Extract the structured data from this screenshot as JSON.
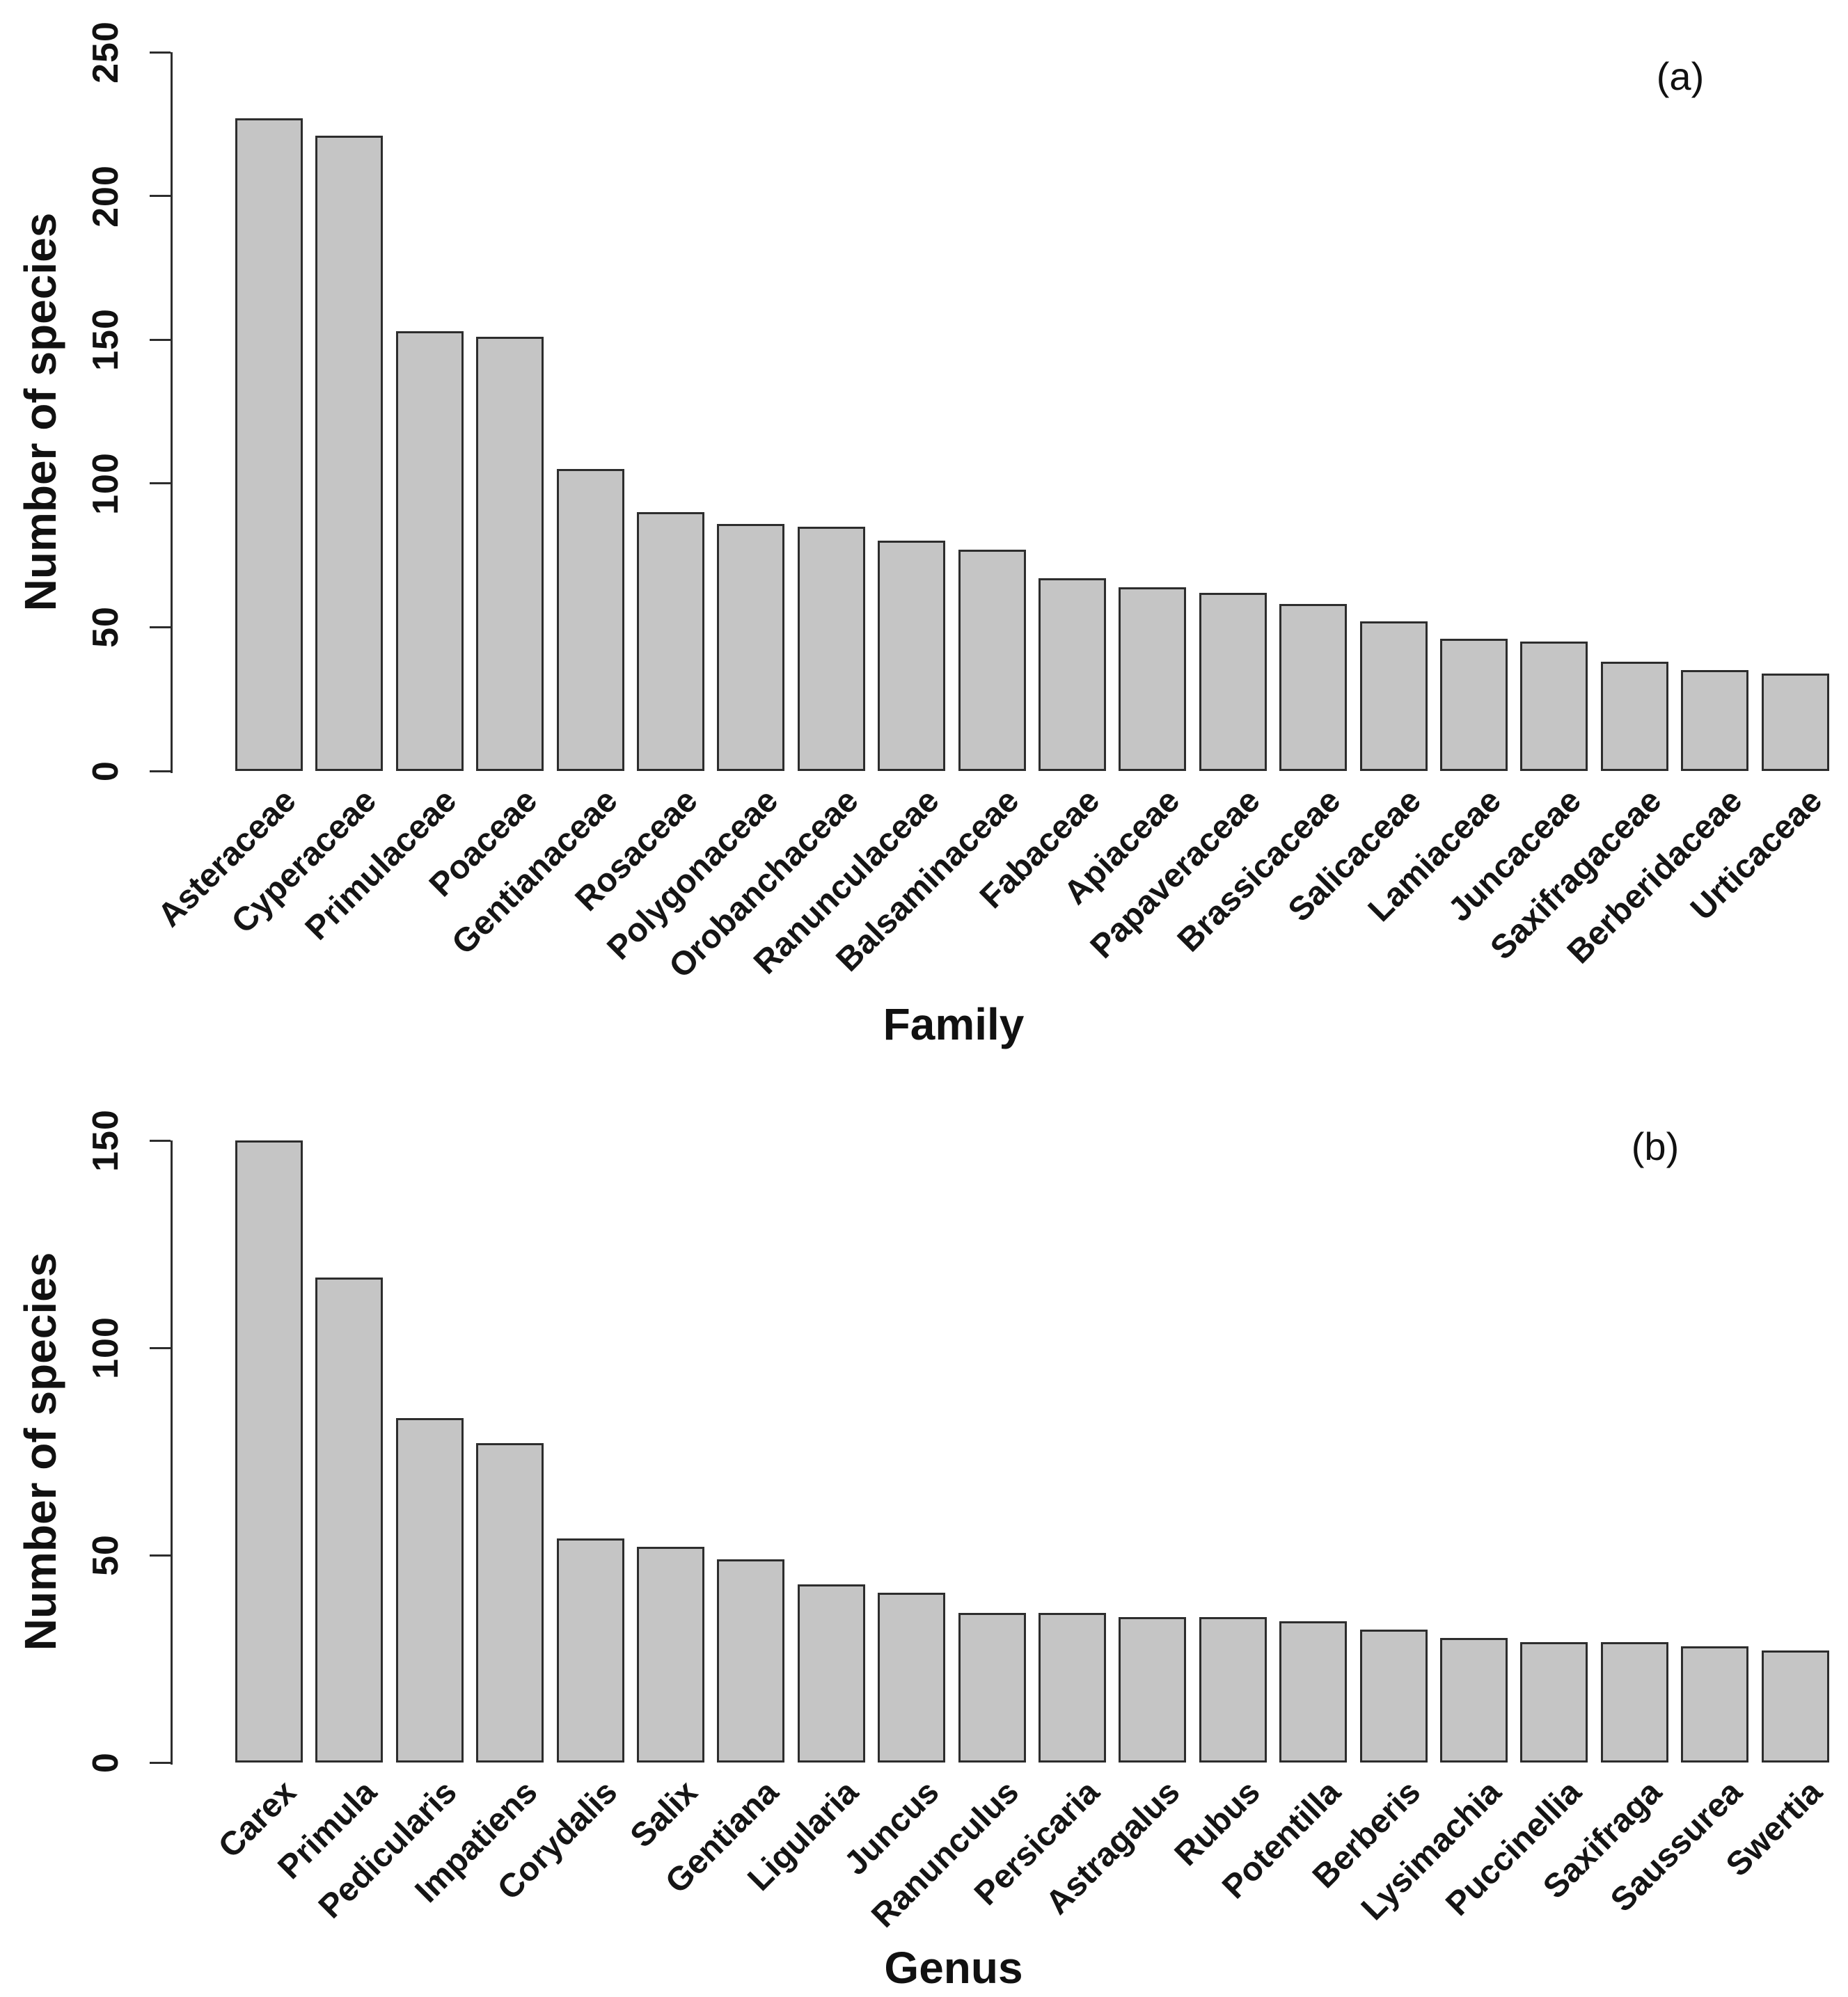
{
  "chart_data": [
    {
      "type": "bar",
      "panel_label": "(a)",
      "xlabel": "Family",
      "ylabel": "Number of species",
      "ylim": [
        0,
        250
      ],
      "yticks": [
        0,
        50,
        100,
        150,
        200,
        250
      ],
      "grid": false,
      "legend": "none",
      "bar_fill": "#c5c5c5",
      "bar_border": "#2d2d2d",
      "categories": [
        "Asteraceae",
        "Cyperaceae",
        "Primulaceae",
        "Poaceae",
        "Gentianaceae",
        "Rosaceae",
        "Polygonaceae",
        "Orobanchaceae",
        "Ranunculaceae",
        "Balsaminaceae",
        "Fabaceae",
        "Apiaceae",
        "Papaveraceae",
        "Brassicaceae",
        "Salicaceae",
        "Lamiaceae",
        "Juncaceae",
        "Saxifragaceae",
        "Berberidaceae",
        "Urticaceae"
      ],
      "values": [
        227,
        221,
        153,
        151,
        105,
        90,
        86,
        85,
        80,
        77,
        67,
        64,
        62,
        58,
        52,
        46,
        45,
        38,
        35,
        34
      ]
    },
    {
      "type": "bar",
      "panel_label": "(b)",
      "xlabel": "Genus",
      "ylabel": "Number of species",
      "ylim": [
        0,
        150
      ],
      "yticks": [
        0,
        50,
        100,
        150
      ],
      "grid": false,
      "legend": "none",
      "bar_fill": "#c5c5c5",
      "bar_border": "#2d2d2d",
      "categories": [
        "Carex",
        "Primula",
        "Pedicularis",
        "Impatiens",
        "Corydalis",
        "Salix",
        "Gentiana",
        "Ligularia",
        "Juncus",
        "Ranunculus",
        "Persicaria",
        "Astragalus",
        "Rubus",
        "Potentilla",
        "Berberis",
        "Lysimachia",
        "Puccinellia",
        "Saxifraga",
        "Saussurea",
        "Swertia"
      ],
      "values": [
        150,
        117,
        83,
        77,
        54,
        52,
        49,
        43,
        41,
        36,
        36,
        35,
        35,
        34,
        32,
        30,
        29,
        29,
        28,
        27
      ]
    }
  ]
}
